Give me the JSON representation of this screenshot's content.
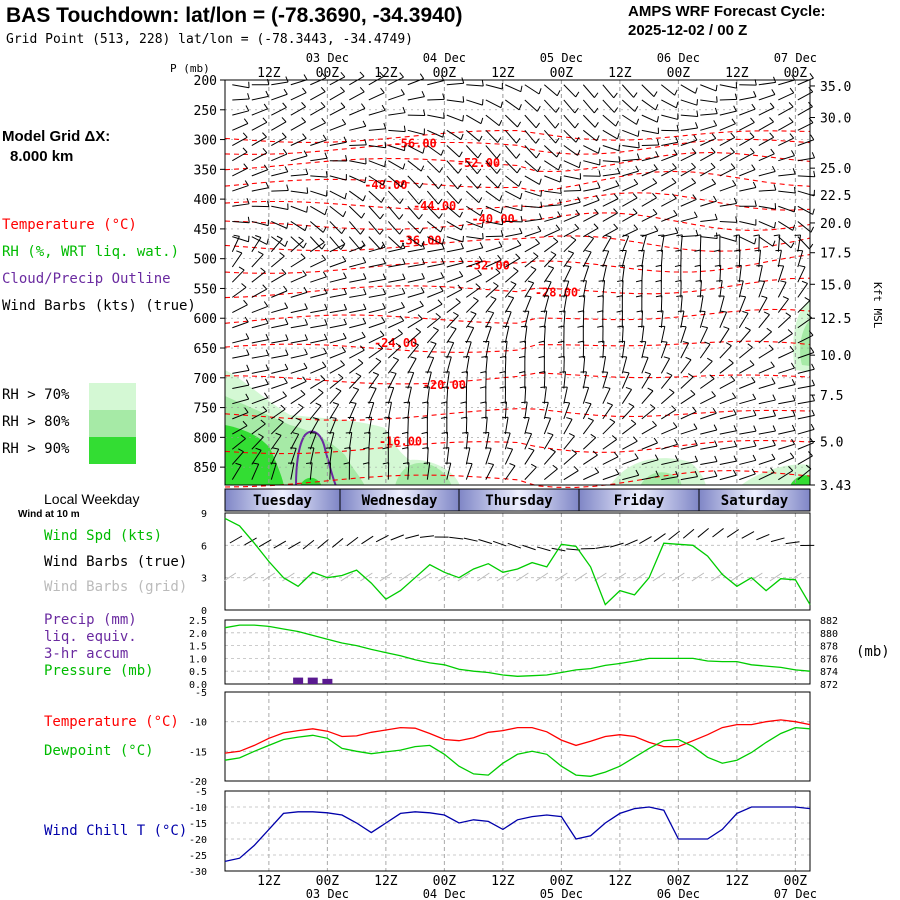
{
  "header": {
    "title": "BAS Touchdown:  lat/lon = (-78.3690, -34.3940)",
    "subtitle": "Grid Point (513, 228) lat/lon = (-78.3443, -34.4749)",
    "cycle_label": "AMPS WRF Forecast Cycle:",
    "cycle_value": "2025-12-02 / 00  Z"
  },
  "legend": {
    "model_grid": "Model Grid ΔX:",
    "model_grid_value": "8.000 km",
    "temperature": "Temperature (°C)",
    "rh": "RH (%, WRT liq. wat.)",
    "cloud": "Cloud/Precip Outline",
    "wind": "Wind Barbs (kts) (true)",
    "rh70": "RH > 70%",
    "rh80": "RH > 80%",
    "rh90": "RH > 90%",
    "local_weekday": "Local Weekday",
    "wind_at": "Wind at 10 m",
    "wind_spd": "Wind Spd (kts)",
    "wind_barbs_true": "Wind Barbs (true)",
    "wind_barbs_grid": "Wind Barbs (grid)",
    "precip": "Precip (mm)",
    "liq": "liq. equiv.",
    "accum": "3-hr accum",
    "pressure": "Pressure (mb)",
    "mb_unit": "(mb)",
    "temp2": "Temperature (°C)",
    "dewpoint": "Dewpoint (°C)",
    "windchill": "Wind Chill T (°C)",
    "p_axis": "P (mb)",
    "kft": "Kft MSL"
  },
  "colors": {
    "temperature": "#ff0000",
    "dewpoint": "#00cc00",
    "windchill": "#0000aa",
    "cloud": "#6a2aa0",
    "rh70": "#d4f8d4",
    "rh80": "#a6eaa6",
    "rh90": "#33dd33",
    "gridlines": "#999999"
  },
  "chart_data": [
    {
      "type": "cross-section",
      "name": "time-height cross section",
      "time_labels_top": [
        "12Z",
        "00Z",
        "12Z",
        "00Z",
        "12Z",
        "00Z",
        "12Z",
        "00Z",
        "12Z",
        "00Z"
      ],
      "date_labels": [
        "03 Dec",
        "04 Dec",
        "05 Dec",
        "06 Dec",
        "07 Dec"
      ],
      "pressure_levels": [
        200,
        250,
        300,
        350,
        400,
        450,
        500,
        550,
        600,
        650,
        700,
        750,
        800,
        850
      ],
      "ylim_mb": [
        200,
        880
      ],
      "kft_levels": [
        {
          "label": "35.0",
          "p": 210
        },
        {
          "label": "30.0",
          "p": 263
        },
        {
          "label": "25.0",
          "p": 348
        },
        {
          "label": "22.5",
          "p": 393
        },
        {
          "label": "20.0",
          "p": 440
        },
        {
          "label": "17.5",
          "p": 490
        },
        {
          "label": "15.0",
          "p": 543
        },
        {
          "label": "12.5",
          "p": 600
        },
        {
          "label": "10.0",
          "p": 662
        },
        {
          "label": "7.5",
          "p": 729
        },
        {
          "label": "5.0",
          "p": 807
        },
        {
          "label": "3.43",
          "p": 880
        }
      ],
      "temperature_labels": [
        {
          "text": "-56.00",
          "hour": 39,
          "p": 305
        },
        {
          "text": "-52.00",
          "hour": 52,
          "p": 338
        },
        {
          "text": "-48.00",
          "hour": 33,
          "p": 375
        },
        {
          "text": "-44.00",
          "hour": 43,
          "p": 410
        },
        {
          "text": "-40.00",
          "hour": 55,
          "p": 432
        },
        {
          "text": "-36.00",
          "hour": 40,
          "p": 468
        },
        {
          "text": "-32.00",
          "hour": 54,
          "p": 510
        },
        {
          "text": "-28.00",
          "hour": 68,
          "p": 555
        },
        {
          "text": "-24.00",
          "hour": 35,
          "p": 640
        },
        {
          "text": "-20.00",
          "hour": 45,
          "p": 710
        },
        {
          "text": "-16.00",
          "hour": 36,
          "p": 805
        }
      ]
    },
    {
      "type": "line",
      "name": "wind speed",
      "ylabel": "Wind Spd (kts)",
      "ylim": [
        0,
        9
      ],
      "yticks": [
        0,
        3,
        6,
        9
      ],
      "x_hours": [
        0,
        3,
        6,
        9,
        12,
        15,
        18,
        21,
        24,
        27,
        30,
        33,
        36,
        39,
        42,
        45,
        48,
        51,
        54,
        57,
        60,
        63,
        66,
        69,
        72,
        75,
        78,
        81,
        84,
        87,
        90,
        93,
        96,
        99,
        102,
        105,
        108,
        111,
        114,
        117,
        120
      ],
      "values": [
        8.5,
        7.8,
        6.2,
        4.5,
        3.0,
        2.2,
        3.5,
        3.0,
        3.2,
        3.7,
        2.5,
        1.0,
        1.8,
        3.0,
        4.2,
        3.5,
        3.0,
        3.8,
        4.3,
        3.5,
        3.8,
        4.4,
        4.0,
        6.1,
        5.9,
        4.0,
        0.5,
        1.8,
        1.4,
        3.0,
        6.2,
        6.1,
        6.0,
        5.0,
        3.3,
        2.2,
        3.0,
        1.8,
        2.9,
        2.8,
        0.5
      ]
    },
    {
      "type": "bar",
      "name": "precipitation",
      "ylabel": "Precip (mm)",
      "ylim": [
        0,
        2.5
      ],
      "yticks": [
        0.0,
        0.5,
        1.0,
        1.5,
        2.0,
        2.5
      ],
      "x_hours": [
        15,
        18,
        21
      ],
      "values": [
        0.25,
        0.25,
        0.2
      ]
    },
    {
      "type": "line",
      "name": "pressure",
      "ylabel": "Pressure (mb)",
      "ylim": [
        872,
        882
      ],
      "yticks": [
        872,
        874,
        876,
        878,
        880,
        882
      ],
      "x_hours": [
        0,
        3,
        6,
        9,
        12,
        15,
        18,
        21,
        24,
        27,
        30,
        33,
        36,
        39,
        42,
        45,
        48,
        51,
        54,
        57,
        60,
        63,
        66,
        69,
        72,
        75,
        78,
        81,
        84,
        87,
        90,
        93,
        96,
        99,
        102,
        105,
        108,
        111,
        114,
        117,
        120
      ],
      "values": [
        880.8,
        881.2,
        881.2,
        881.0,
        880.6,
        880.2,
        879.6,
        879.0,
        878.4,
        878.0,
        877.4,
        876.9,
        876.4,
        875.8,
        875.3,
        875.0,
        874.3,
        874.0,
        873.8,
        873.4,
        873.2,
        873.3,
        873.4,
        873.8,
        874.2,
        874.4,
        874.9,
        875.2,
        875.6,
        876.0,
        876.0,
        876.0,
        876.0,
        875.6,
        875.5,
        875.5,
        875.0,
        874.8,
        874.6,
        874.2,
        874.0
      ]
    },
    {
      "type": "line",
      "name": "temperature and dewpoint",
      "ylim": [
        -20,
        -5
      ],
      "yticks": [
        -20,
        -15,
        -10,
        -5
      ],
      "x_hours": [
        0,
        3,
        6,
        9,
        12,
        15,
        18,
        21,
        24,
        27,
        30,
        33,
        36,
        39,
        42,
        45,
        48,
        51,
        54,
        57,
        60,
        63,
        66,
        69,
        72,
        75,
        78,
        81,
        84,
        87,
        90,
        93,
        96,
        99,
        102,
        105,
        108,
        111,
        114,
        117,
        120
      ],
      "series": [
        {
          "name": "Temperature",
          "color": "#ff0000",
          "values": [
            -15.3,
            -15.0,
            -14.0,
            -12.8,
            -11.9,
            -11.5,
            -11.2,
            -11.6,
            -12.5,
            -12.4,
            -11.8,
            -11.4,
            -11.0,
            -11.1,
            -12.0,
            -13.0,
            -13.2,
            -12.7,
            -11.8,
            -11.5,
            -11.0,
            -11.0,
            -11.7,
            -13.1,
            -14.0,
            -13.3,
            -12.5,
            -12.2,
            -12.5,
            -13.5,
            -14.2,
            -14.2,
            -13.2,
            -12.2,
            -11.0,
            -10.5,
            -10.5,
            -10.0,
            -9.7,
            -10.0,
            -10.5
          ]
        },
        {
          "name": "Dewpoint",
          "color": "#00cc00",
          "values": [
            -16.5,
            -16.1,
            -15.0,
            -14.0,
            -13.0,
            -12.6,
            -12.3,
            -12.8,
            -14.5,
            -15.0,
            -15.4,
            -15.1,
            -14.8,
            -14.2,
            -14.0,
            -15.5,
            -17.5,
            -18.8,
            -19.0,
            -17.0,
            -15.5,
            -15.0,
            -15.5,
            -17.5,
            -19.0,
            -19.2,
            -18.5,
            -17.5,
            -16.0,
            -14.5,
            -13.2,
            -13.0,
            -14.2,
            -16.0,
            -17.0,
            -16.5,
            -15.2,
            -13.5,
            -12.0,
            -11.0,
            -11.2
          ]
        }
      ]
    },
    {
      "type": "line",
      "name": "wind chill",
      "ylabel": "Wind Chill T (°C)",
      "ylim": [
        -30,
        -5
      ],
      "yticks": [
        -30,
        -25,
        -20,
        -15,
        -10,
        -5
      ],
      "x_hours": [
        0,
        3,
        6,
        9,
        12,
        15,
        18,
        21,
        24,
        27,
        30,
        33,
        36,
        39,
        42,
        45,
        48,
        51,
        54,
        57,
        60,
        63,
        66,
        69,
        72,
        75,
        78,
        81,
        84,
        87,
        90,
        93,
        96,
        99,
        102,
        105,
        108,
        111,
        114,
        117,
        120
      ],
      "series": [
        {
          "name": "Wind Chill",
          "color": "#0000aa",
          "values": [
            -27.0,
            -26.0,
            -22.0,
            -17.0,
            -12.0,
            -11.5,
            -11.5,
            -11.8,
            -12.5,
            -15.0,
            -18.0,
            -15.0,
            -12.0,
            -11.5,
            -11.8,
            -12.5,
            -15.0,
            -14.0,
            -14.5,
            -17.0,
            -14.0,
            -13.0,
            -12.5,
            -13.0,
            -20.0,
            -19.0,
            -15.0,
            -12.0,
            -10.5,
            -10.0,
            -11.0,
            -20.0,
            -20.0,
            -20.0,
            -17.0,
            -12.0,
            -10.0,
            -10.0,
            -10.0,
            -10.0,
            -10.5
          ]
        }
      ]
    }
  ],
  "weekday_bar": {
    "days": [
      "Tuesday",
      "Wednesday",
      "Thursday",
      "Friday",
      "Saturday"
    ]
  },
  "bottom_axis": {
    "time_labels": [
      "12Z",
      "00Z",
      "12Z",
      "00Z",
      "12Z",
      "00Z",
      "12Z",
      "00Z",
      "12Z",
      "00Z"
    ],
    "date_labels": [
      "03 Dec",
      "04 Dec",
      "05 Dec",
      "06 Dec",
      "07 Dec"
    ]
  }
}
